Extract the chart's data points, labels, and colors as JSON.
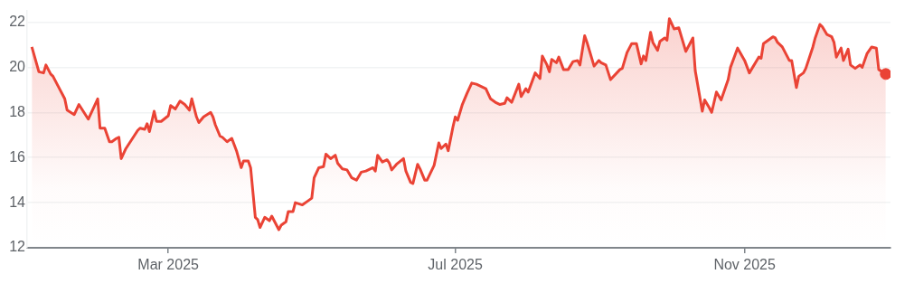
{
  "chart_data": {
    "type": "area",
    "xlim": [
      "2024-12-31",
      "2026-01-02"
    ],
    "xticks": [
      {
        "value": "2025-03-01",
        "label": "Mar 2025"
      },
      {
        "value": "2025-07-01",
        "label": "Jul 2025"
      },
      {
        "value": "2025-11-01",
        "label": "Nov 2025"
      }
    ],
    "ylim": [
      12,
      22.5
    ],
    "yticks": [
      12,
      14,
      16,
      18,
      20,
      22
    ],
    "grid": "y",
    "series": [
      {
        "color": "#ea4335",
        "marker": "none",
        "x": [
          "2025-01-02",
          "2025-01-05",
          "2025-01-07",
          "2025-01-08",
          "2025-01-10",
          "2025-01-11",
          "2025-01-13",
          "2025-01-16",
          "2025-01-17",
          "2025-01-20",
          "2025-01-22",
          "2025-01-26",
          "2025-01-30",
          "2025-01-31",
          "2025-02-02",
          "2025-02-04",
          "2025-02-05",
          "2025-02-07",
          "2025-02-08",
          "2025-02-09",
          "2025-02-11",
          "2025-02-16",
          "2025-02-17",
          "2025-02-19",
          "2025-02-20",
          "2025-02-21",
          "2025-02-23",
          "2025-02-24",
          "2025-02-26",
          "2025-03-01",
          "2025-03-02",
          "2025-03-04",
          "2025-03-06",
          "2025-03-08",
          "2025-03-10",
          "2025-03-11",
          "2025-03-13",
          "2025-03-14",
          "2025-03-16",
          "2025-03-19",
          "2025-03-20",
          "2025-03-21",
          "2025-03-23",
          "2025-03-24",
          "2025-03-26",
          "2025-03-28",
          "2025-03-30",
          "2025-04-01",
          "2025-04-02",
          "2025-04-04",
          "2025-04-05",
          "2025-04-07",
          "2025-04-08",
          "2025-04-09",
          "2025-04-11",
          "2025-04-13",
          "2025-04-14",
          "2025-04-17",
          "2025-04-18",
          "2025-04-20",
          "2025-04-21",
          "2025-04-23",
          "2025-04-24",
          "2025-04-27",
          "2025-04-29",
          "2025-05-01",
          "2025-05-02",
          "2025-05-04",
          "2025-05-06",
          "2025-05-07",
          "2025-05-09",
          "2025-05-11",
          "2025-05-12",
          "2025-05-14",
          "2025-05-16",
          "2025-05-18",
          "2025-05-20",
          "2025-05-22",
          "2025-05-24",
          "2025-05-27",
          "2025-05-28",
          "2025-05-29",
          "2025-05-31",
          "2025-06-02",
          "2025-06-03",
          "2025-06-04",
          "2025-06-06",
          "2025-06-09",
          "2025-06-10",
          "2025-06-12",
          "2025-06-13",
          "2025-06-15",
          "2025-06-16",
          "2025-06-18",
          "2025-06-19",
          "2025-06-22",
          "2025-06-24",
          "2025-06-25",
          "2025-06-27",
          "2025-06-28",
          "2025-06-30",
          "2025-07-01",
          "2025-07-02",
          "2025-07-04",
          "2025-07-06",
          "2025-07-08",
          "2025-07-10",
          "2025-07-12",
          "2025-07-14",
          "2025-07-16",
          "2025-07-18",
          "2025-07-20",
          "2025-07-22",
          "2025-07-23",
          "2025-07-25",
          "2025-07-28",
          "2025-07-29",
          "2025-07-31",
          "2025-08-01",
          "2025-08-04",
          "2025-08-06",
          "2025-08-07",
          "2025-08-09",
          "2025-08-10",
          "2025-08-11",
          "2025-08-13",
          "2025-08-14",
          "2025-08-16",
          "2025-08-18",
          "2025-08-20",
          "2025-08-22",
          "2025-08-23",
          "2025-08-25",
          "2025-08-26",
          "2025-08-29",
          "2025-08-31",
          "2025-09-01",
          "2025-09-03",
          "2025-09-05",
          "2025-09-09",
          "2025-09-10",
          "2025-09-12",
          "2025-09-14",
          "2025-09-16",
          "2025-09-18",
          "2025-09-19",
          "2025-09-20",
          "2025-09-22",
          "2025-09-23",
          "2025-09-25",
          "2025-09-26",
          "2025-09-28",
          "2025-09-29",
          "2025-09-30",
          "2025-10-02",
          "2025-10-04",
          "2025-10-07",
          "2025-10-10",
          "2025-10-11",
          "2025-10-14",
          "2025-10-15",
          "2025-10-17",
          "2025-10-18",
          "2025-10-20",
          "2025-10-22",
          "2025-10-25",
          "2025-10-26",
          "2025-10-29",
          "2025-11-01",
          "2025-11-03",
          "2025-11-07",
          "2025-11-08",
          "2025-11-09",
          "2025-11-11",
          "2025-11-13",
          "2025-11-14",
          "2025-11-15",
          "2025-11-17",
          "2025-11-20",
          "2025-11-21",
          "2025-11-23",
          "2025-11-24",
          "2025-11-26",
          "2025-11-27",
          "2025-11-30",
          "2025-12-01",
          "2025-12-03",
          "2025-12-04",
          "2025-12-06",
          "2025-12-08",
          "2025-12-09",
          "2025-12-10",
          "2025-12-12",
          "2025-12-13",
          "2025-12-15",
          "2025-12-16",
          "2025-12-18",
          "2025-12-20",
          "2025-12-21",
          "2025-12-23",
          "2025-12-25",
          "2025-12-27",
          "2025-12-28",
          "2025-12-31"
        ],
        "values": [
          20.9,
          19.8,
          19.75,
          20.1,
          19.7,
          19.6,
          19.2,
          18.6,
          18.1,
          17.9,
          18.35,
          17.7,
          18.6,
          17.3,
          17.3,
          16.7,
          16.7,
          16.85,
          16.9,
          15.95,
          16.4,
          17.2,
          17.3,
          17.25,
          17.5,
          17.15,
          18.05,
          17.6,
          17.6,
          17.85,
          18.3,
          18.15,
          18.5,
          18.35,
          18.1,
          18.6,
          17.8,
          17.55,
          17.8,
          18.0,
          17.8,
          17.45,
          16.95,
          16.9,
          16.7,
          16.85,
          16.3,
          15.55,
          15.85,
          15.85,
          15.55,
          13.35,
          13.25,
          12.9,
          13.35,
          13.2,
          13.4,
          12.8,
          13.0,
          13.15,
          13.6,
          13.6,
          14.0,
          13.9,
          14.05,
          14.2,
          15.1,
          15.55,
          15.6,
          16.15,
          15.95,
          16.1,
          15.75,
          15.5,
          15.45,
          15.1,
          15.0,
          15.35,
          15.4,
          15.55,
          15.4,
          16.1,
          15.8,
          15.9,
          15.75,
          15.45,
          15.7,
          15.95,
          15.4,
          14.9,
          14.85,
          15.7,
          15.5,
          15.0,
          15.0,
          15.65,
          16.65,
          16.4,
          16.6,
          16.3,
          17.35,
          17.8,
          17.65,
          18.35,
          18.85,
          19.3,
          19.25,
          19.15,
          19.05,
          18.6,
          18.45,
          18.35,
          18.4,
          18.65,
          18.45,
          19.25,
          18.7,
          19.05,
          18.9,
          19.75,
          19.5,
          20.5,
          20.1,
          19.8,
          20.35,
          20.2,
          20.45,
          19.9,
          19.9,
          20.25,
          20.3,
          20.1,
          21.4,
          21.1,
          20.05,
          20.3,
          20.2,
          20.1,
          19.45,
          19.9,
          19.95,
          20.65,
          21.05,
          21.05,
          20.15,
          20.5,
          20.3,
          21.55,
          21.1,
          20.75,
          21.15,
          21.3,
          21.2,
          22.15,
          21.7,
          21.75,
          20.7,
          21.3,
          19.85,
          18.05,
          18.55,
          18.2,
          18.0,
          18.9,
          18.55,
          19.45,
          20.0,
          20.85,
          20.3,
          19.75,
          20.45,
          20.4,
          21.05,
          21.2,
          21.35,
          21.3,
          21.1,
          20.9,
          20.3,
          20.3,
          19.1,
          19.6,
          19.75,
          19.95,
          20.9,
          21.3,
          21.9,
          21.8,
          21.45,
          21.35,
          21.1,
          20.45,
          20.85,
          20.3,
          20.8,
          20.1,
          19.95,
          20.1,
          20.0,
          20.6,
          20.9,
          20.85,
          19.9,
          19.7
        ]
      },
      {
        "type": "scatter",
        "color": "#ea4335",
        "marker": "circle",
        "x": [
          "2025-12-31"
        ],
        "values": [
          19.7
        ]
      }
    ]
  }
}
